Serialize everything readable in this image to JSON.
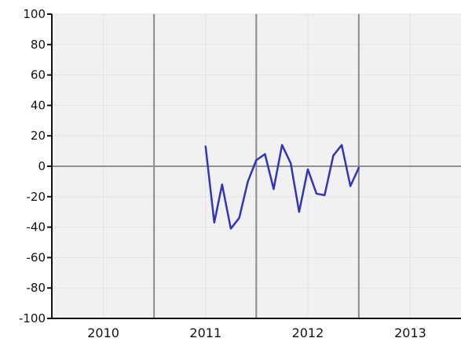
{
  "chart_data": {
    "type": "line",
    "title": "",
    "xlabel": "",
    "ylabel": "",
    "grid": true,
    "legend": "none",
    "x_domain": [
      "2009-07-01",
      "2013-07-01"
    ],
    "ylim": [
      -100,
      100
    ],
    "x_ticks": [
      {
        "label": "2010",
        "center": "2010-01-01"
      },
      {
        "label": "2011",
        "center": "2011-01-01"
      },
      {
        "label": "2012",
        "center": "2012-01-01"
      },
      {
        "label": "2013",
        "center": "2013-01-01"
      }
    ],
    "y_ticks": [
      100,
      80,
      60,
      40,
      20,
      0,
      -20,
      -40,
      -60,
      -80,
      -100
    ],
    "emphasized_x_lines": [
      "2010-07-01",
      "2011-07-01",
      "2012-07-01"
    ],
    "emphasized_y_lines": [
      0
    ],
    "series": [
      {
        "x": [
          "2011-01-01",
          "2011-02-01",
          "2011-03-01",
          "2011-04-01",
          "2011-05-01",
          "2011-06-01",
          "2011-07-01",
          "2011-08-01",
          "2011-09-01",
          "2011-10-01",
          "2011-11-01",
          "2011-12-01",
          "2012-01-01",
          "2012-02-01",
          "2012-03-01",
          "2012-04-01",
          "2012-05-01",
          "2012-06-01",
          "2012-07-01"
        ],
        "values": [
          13,
          -37,
          -12,
          -41,
          -34,
          -10,
          4,
          8,
          -15,
          14,
          2,
          -30,
          -2,
          -18,
          -19,
          7,
          14,
          -13,
          -1
        ]
      }
    ],
    "colors": {
      "series_line": "#3333bb",
      "plot_background": "#f1f1f1",
      "axis": "#111111",
      "major_grid": "#8a8a8a",
      "minor_grid": "#e3e3e3",
      "zero_line": "#8f8f8f"
    }
  }
}
